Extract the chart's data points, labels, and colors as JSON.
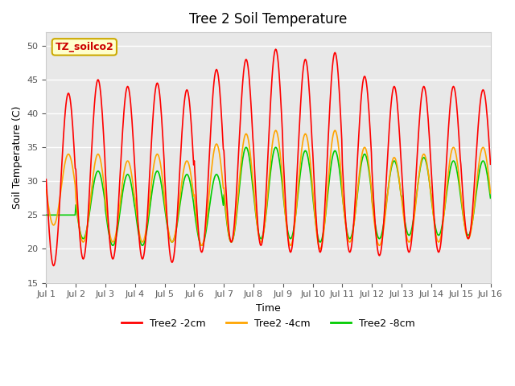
{
  "title": "Tree 2 Soil Temperature",
  "xlabel": "Time",
  "ylabel": "Soil Temperature (C)",
  "annotation": "TZ_soilco2",
  "ylim": [
    15,
    52
  ],
  "yticks": [
    15,
    20,
    25,
    30,
    35,
    40,
    45,
    50
  ],
  "xtick_labels": [
    "Jul 1",
    "Jul 2",
    "Jul 3",
    "Jul 4",
    "Jul 5",
    "Jul 6",
    "Jul 7",
    "Jul 8",
    "Jul 9",
    "Jul 10",
    "Jul 11",
    "Jul 12",
    "Jul 13",
    "Jul 14",
    "Jul 15",
    "Jul 16"
  ],
  "color_2cm": "#FF0000",
  "color_4cm": "#FFA500",
  "color_8cm": "#00CC00",
  "legend_labels": [
    "Tree2 -2cm",
    "Tree2 -4cm",
    "Tree2 -8cm"
  ],
  "background_color": "#FFFFFF",
  "plot_bg_color": "#E8E8E8",
  "grid_color": "#FFFFFF",
  "peaks_2cm": [
    43,
    45,
    44,
    44.5,
    43.5,
    46.5,
    48,
    49.5,
    48,
    49,
    45.5,
    44,
    44,
    44,
    43.5
  ],
  "troughs_2cm": [
    17.5,
    18.5,
    18.5,
    18.5,
    18,
    19.5,
    21,
    20.5,
    19.5,
    19.5,
    19.5,
    19,
    19.5,
    19.5,
    21.5
  ],
  "peaks_4cm": [
    34,
    34,
    33,
    34,
    33,
    35.5,
    37,
    37.5,
    37,
    37.5,
    35,
    33.5,
    34,
    35,
    35
  ],
  "troughs_4cm": [
    23.5,
    21,
    21,
    21,
    21,
    20.5,
    21,
    21,
    20.5,
    20,
    21,
    20.5,
    21,
    21,
    21.5
  ],
  "peaks_8cm": [
    25,
    31.5,
    31,
    31.5,
    31,
    31,
    35,
    35,
    34.5,
    34.5,
    34,
    33,
    33.5,
    33,
    33
  ],
  "troughs_8cm": [
    25,
    21.5,
    20.5,
    20.5,
    21,
    20.5,
    21,
    21.5,
    21.5,
    21,
    21.5,
    21.5,
    22,
    22,
    22
  ]
}
